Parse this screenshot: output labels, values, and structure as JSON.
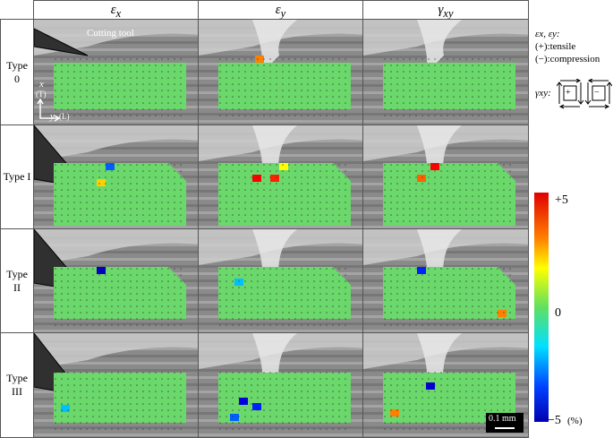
{
  "columns": [
    {
      "symbol": "ε",
      "sub": "x"
    },
    {
      "symbol": "ε",
      "sub": "y"
    },
    {
      "symbol": "γ",
      "sub": "xy"
    }
  ],
  "rows": [
    "Type 0",
    "Type I",
    "Type II",
    "Type III"
  ],
  "annotations": {
    "tool": "Cutting tool",
    "x_axis": "x",
    "x_dir": "(T)",
    "y_axis": "y",
    "y_dir": "(L)"
  },
  "legend": {
    "strains": "εx, εy:",
    "tensile": "(+):tensile",
    "compression": "(−):compression",
    "shear": "γxy:",
    "plus": "+",
    "minus": "−"
  },
  "colorbar": {
    "max": "+5",
    "mid": "0",
    "min": "−5",
    "unit": "(%)"
  },
  "scale_bar": "0.1 mm"
}
